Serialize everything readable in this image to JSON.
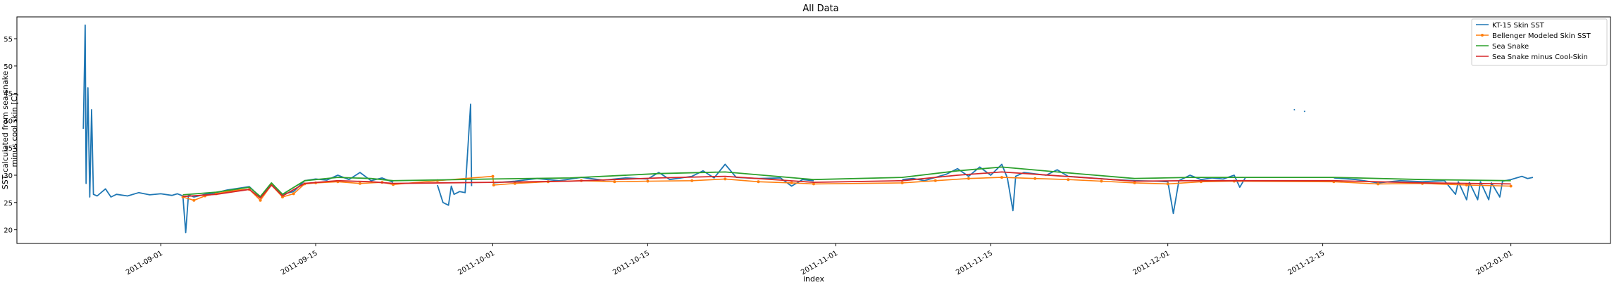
{
  "chart_data": {
    "type": "line",
    "title": "All Data",
    "xlabel": "index",
    "ylabel": [
      "SST calculated from sea snake",
      "minus cool skin [C]"
    ],
    "x_type": "date",
    "xlim": [
      "2011-08-19",
      "2012-01-10"
    ],
    "ylim": [
      17.5,
      59
    ],
    "xticks": [
      "2011-09-01",
      "2011-09-15",
      "2011-10-01",
      "2011-10-15",
      "2011-11-01",
      "2011-11-15",
      "2011-12-01",
      "2011-12-15",
      "2012-01-01"
    ],
    "yticks": [
      20,
      25,
      30,
      35,
      40,
      45,
      50,
      55
    ],
    "grid": false,
    "legend_position": "top-right",
    "colors": {
      "kt15": "#1f77b4",
      "bellenger": "#ff7f0e",
      "seasnake": "#2ca02c",
      "seasnake_cool": "#d62728"
    },
    "series": [
      {
        "name": "KT-15 Skin SST",
        "color": "#1f77b4",
        "marker": false,
        "segments": [
          [
            [
              "2011-08-25 00:00",
              38.5
            ],
            [
              "2011-08-25 04:00",
              57.5
            ],
            [
              "2011-08-25 06:00",
              28.5
            ],
            [
              "2011-08-25 10:00",
              46.0
            ],
            [
              "2011-08-25 14:00",
              26.0
            ],
            [
              "2011-08-25 18:00",
              42.0
            ],
            [
              "2011-08-25 22:00",
              26.5
            ],
            [
              "2011-08-26 06:00",
              26.2
            ],
            [
              "2011-08-27 00:00",
              27.5
            ],
            [
              "2011-08-27 12:00",
              26.0
            ],
            [
              "2011-08-28 00:00",
              26.5
            ],
            [
              "2011-08-29 00:00",
              26.2
            ],
            [
              "2011-08-30 00:00",
              26.8
            ],
            [
              "2011-08-31 00:00",
              26.4
            ],
            [
              "2011-09-01 00:00",
              26.6
            ],
            [
              "2011-09-02 00:00",
              26.3
            ],
            [
              "2011-09-02 12:00",
              26.6
            ],
            [
              "2011-09-03 00:00",
              26.2
            ],
            [
              "2011-09-03 06:00",
              19.5
            ],
            [
              "2011-09-03 12:00",
              26.4
            ],
            [
              "2011-09-04 00:00",
              26.0
            ],
            [
              "2011-09-05 00:00",
              26.5
            ],
            [
              "2011-09-06 00:00",
              26.8
            ],
            [
              "2011-09-07 00:00",
              27.3
            ],
            [
              "2011-09-08 00:00",
              27.6
            ],
            [
              "2011-09-09 00:00",
              27.9
            ],
            [
              "2011-09-10 00:00",
              26.0
            ],
            [
              "2011-09-11 00:00",
              28.5
            ],
            [
              "2011-09-12 00:00",
              26.5
            ],
            [
              "2011-09-13 00:00",
              27.0
            ],
            [
              "2011-09-14 00:00",
              29.0
            ],
            [
              "2011-09-15 00:00",
              29.3
            ],
            [
              "2011-09-16 00:00",
              29.1
            ],
            [
              "2011-09-17 00:00",
              30.0
            ],
            [
              "2011-09-18 00:00",
              29.2
            ],
            [
              "2011-09-19 00:00",
              30.5
            ],
            [
              "2011-09-20 00:00",
              29.0
            ],
            [
              "2011-09-21 00:00",
              29.5
            ],
            [
              "2011-09-22 00:00",
              28.7
            ]
          ],
          [
            [
              "2011-09-26 00:00",
              28.2
            ],
            [
              "2011-09-26 12:00",
              25.0
            ],
            [
              "2011-09-27 00:00",
              24.5
            ],
            [
              "2011-09-27 06:00",
              28.0
            ],
            [
              "2011-09-27 12:00",
              26.5
            ],
            [
              "2011-09-28 00:00",
              27.0
            ],
            [
              "2011-09-28 12:00",
              26.8
            ],
            [
              "2011-09-29 00:00",
              43.0
            ],
            [
              "2011-09-29 02:00",
              28.0
            ]
          ],
          [
            [
              "2011-10-01 00:00",
              28.6
            ],
            [
              "2011-10-03 00:00",
              28.9
            ],
            [
              "2011-10-05 00:00",
              29.4
            ],
            [
              "2011-10-07 00:00",
              29.0
            ],
            [
              "2011-10-09 00:00",
              29.6
            ],
            [
              "2011-10-11 00:00",
              29.1
            ],
            [
              "2011-10-13 00:00",
              29.5
            ],
            [
              "2011-10-15 00:00",
              29.3
            ],
            [
              "2011-10-16 00:00",
              30.5
            ],
            [
              "2011-10-17 00:00",
              29.2
            ],
            [
              "2011-10-19 00:00",
              29.8
            ],
            [
              "2011-10-20 00:00",
              30.8
            ],
            [
              "2011-10-21 00:00",
              29.5
            ],
            [
              "2011-10-22 00:00",
              32.0
            ],
            [
              "2011-10-23 00:00",
              29.6
            ],
            [
              "2011-10-25 00:00",
              29.4
            ],
            [
              "2011-10-27 00:00",
              29.5
            ],
            [
              "2011-10-28 00:00",
              28.0
            ],
            [
              "2011-10-29 00:00",
              29.2
            ],
            [
              "2011-10-30 00:00",
              29.0
            ]
          ],
          [
            [
              "2011-11-07 00:00",
              29.2
            ],
            [
              "2011-11-08 00:00",
              29.4
            ],
            [
              "2011-11-09 00:00",
              29.0
            ],
            [
              "2011-11-10 00:00",
              29.6
            ],
            [
              "2011-11-11 00:00",
              30.2
            ],
            [
              "2011-11-12 00:00",
              31.2
            ],
            [
              "2011-11-13 00:00",
              29.8
            ],
            [
              "2011-11-14 00:00",
              31.5
            ],
            [
              "2011-11-15 00:00",
              30.0
            ],
            [
              "2011-11-16 00:00",
              32.0
            ],
            [
              "2011-11-16 12:00",
              29.5
            ],
            [
              "2011-11-17 00:00",
              23.5
            ],
            [
              "2011-11-17 06:00",
              29.8
            ],
            [
              "2011-11-18 00:00",
              30.5
            ],
            [
              "2011-11-20 00:00",
              30.0
            ],
            [
              "2011-11-21 00:00",
              31.0
            ],
            [
              "2011-11-22 00:00",
              29.8
            ],
            [
              "2011-11-24 00:00",
              29.5
            ],
            [
              "2011-11-26 00:00",
              29.2
            ],
            [
              "2011-11-28 00:00",
              29.0
            ],
            [
              "2011-11-30 00:00",
              28.9
            ],
            [
              "2011-12-01 00:00",
              28.8
            ],
            [
              "2011-12-01 12:00",
              23.0
            ],
            [
              "2011-12-02 00:00",
              29.0
            ],
            [
              "2011-12-03 00:00",
              30.0
            ],
            [
              "2011-12-04 00:00",
              29.2
            ],
            [
              "2011-12-05 00:00",
              29.5
            ],
            [
              "2011-12-06 00:00",
              29.3
            ],
            [
              "2011-12-07 00:00",
              30.0
            ],
            [
              "2011-12-07 12:00",
              27.8
            ],
            [
              "2011-12-08 00:00",
              29.5
            ]
          ],
          [
            [
              "2011-12-16 00:00",
              29.5
            ],
            [
              "2011-12-18 00:00",
              29.2
            ],
            [
              "2011-12-20 00:00",
              28.6
            ],
            [
              "2011-12-22 00:00",
              29.0
            ],
            [
              "2011-12-24 00:00",
              28.8
            ],
            [
              "2011-12-26 00:00",
              29.0
            ],
            [
              "2011-12-27 00:00",
              26.5
            ],
            [
              "2011-12-27 06:00",
              28.8
            ],
            [
              "2011-12-28 00:00",
              25.5
            ],
            [
              "2011-12-28 06:00",
              28.7
            ],
            [
              "2011-12-29 00:00",
              25.5
            ],
            [
              "2011-12-29 06:00",
              28.8
            ],
            [
              "2011-12-30 00:00",
              25.5
            ],
            [
              "2011-12-30 06:00",
              28.6
            ],
            [
              "2011-12-31 00:00",
              26.0
            ],
            [
              "2011-12-31 06:00",
              28.9
            ],
            [
              "2012-01-01 00:00",
              29.2
            ],
            [
              "2012-01-02 00:00",
              29.8
            ],
            [
              "2012-01-02 12:00",
              29.4
            ],
            [
              "2012-01-03 00:00",
              29.6
            ]
          ],
          [
            [
              "2011-12-12 10:00",
              42.1
            ],
            [
              "2011-12-12 11:00",
              41.9
            ]
          ],
          [
            [
              "2011-12-13 08:00",
              41.8
            ],
            [
              "2011-12-13 09:00",
              41.6
            ]
          ]
        ]
      },
      {
        "name": "Bellenger Modeled Skin SST",
        "color": "#ff7f0e",
        "marker": true,
        "segments": [
          [
            [
              "2011-09-03 00:00",
              26.0
            ],
            [
              "2011-09-04 00:00",
              25.4
            ],
            [
              "2011-09-05 00:00",
              26.2
            ],
            [
              "2011-09-06 00:00",
              26.6
            ],
            [
              "2011-09-07 00:00",
              27.0
            ],
            [
              "2011-09-08 00:00",
              27.3
            ],
            [
              "2011-09-09 00:00",
              27.4
            ],
            [
              "2011-09-10 00:00",
              25.4
            ],
            [
              "2011-09-11 00:00",
              28.2
            ],
            [
              "2011-09-12 00:00",
              26.0
            ],
            [
              "2011-09-13 00:00",
              26.6
            ],
            [
              "2011-09-14 00:00",
              28.4
            ],
            [
              "2011-09-15 00:00",
              28.6
            ],
            [
              "2011-09-17 00:00",
              28.8
            ],
            [
              "2011-09-19 00:00",
              28.5
            ],
            [
              "2011-09-21 00:00",
              28.7
            ],
            [
              "2011-09-22 00:00",
              28.3
            ],
            [
              "2011-09-26 00:00",
              29.0
            ],
            [
              "2011-10-01 00:00",
              29.8
            ],
            [
              "2011-10-01 02:00",
              28.2
            ],
            [
              "2011-10-03 00:00",
              28.5
            ],
            [
              "2011-10-06 00:00",
              28.8
            ],
            [
              "2011-10-09 00:00",
              29.0
            ],
            [
              "2011-10-12 00:00",
              28.8
            ],
            [
              "2011-10-15 00:00",
              28.9
            ],
            [
              "2011-10-19 00:00",
              29.0
            ],
            [
              "2011-10-22 00:00",
              29.3
            ],
            [
              "2011-10-25 00:00",
              28.8
            ],
            [
              "2011-10-28 00:00",
              28.6
            ],
            [
              "2011-10-30 00:00",
              28.4
            ],
            [
              "2011-11-07 00:00",
              28.6
            ],
            [
              "2011-11-10 00:00",
              29.0
            ],
            [
              "2011-11-13 00:00",
              29.4
            ],
            [
              "2011-11-16 00:00",
              29.6
            ],
            [
              "2011-11-19 00:00",
              29.4
            ],
            [
              "2011-11-22 00:00",
              29.2
            ],
            [
              "2011-11-25 00:00",
              28.9
            ],
            [
              "2011-11-28 00:00",
              28.6
            ],
            [
              "2011-12-01 00:00",
              28.4
            ],
            [
              "2011-12-04 00:00",
              28.8
            ],
            [
              "2011-12-07 00:00",
              28.9
            ],
            [
              "2011-12-16 00:00",
              28.8
            ],
            [
              "2011-12-20 00:00",
              28.4
            ],
            [
              "2011-12-24 00:00",
              28.5
            ],
            [
              "2011-12-28 00:00",
              28.2
            ],
            [
              "2012-01-01 00:00",
              28.0
            ]
          ]
        ]
      },
      {
        "name": "Sea Snake",
        "color": "#2ca02c",
        "marker": false,
        "segments": [
          [
            [
              "2011-09-03 00:00",
              26.4
            ],
            [
              "2011-09-06 00:00",
              26.9
            ],
            [
              "2011-09-09 00:00",
              27.8
            ],
            [
              "2011-09-10 00:00",
              26.1
            ],
            [
              "2011-09-11 00:00",
              28.6
            ],
            [
              "2011-09-12 00:00",
              26.5
            ],
            [
              "2011-09-14 00:00",
              29.0
            ],
            [
              "2011-09-17 00:00",
              29.6
            ],
            [
              "2011-09-20 00:00",
              29.4
            ],
            [
              "2011-09-22 00:00",
              29.0
            ],
            [
              "2011-10-01 00:00",
              29.3
            ],
            [
              "2011-10-08 00:00",
              29.5
            ],
            [
              "2011-10-16 00:00",
              30.3
            ],
            [
              "2011-10-22 00:00",
              30.6
            ],
            [
              "2011-10-30 00:00",
              29.2
            ],
            [
              "2011-11-07 00:00",
              29.6
            ],
            [
              "2011-11-12 00:00",
              30.8
            ],
            [
              "2011-11-16 00:00",
              31.5
            ],
            [
              "2011-11-21 00:00",
              30.6
            ],
            [
              "2011-11-28 00:00",
              29.4
            ],
            [
              "2011-12-03 00:00",
              29.6
            ],
            [
              "2011-12-08 00:00",
              29.6
            ],
            [
              "2011-12-16 00:00",
              29.6
            ],
            [
              "2011-12-24 00:00",
              29.2
            ],
            [
              "2012-01-01 00:00",
              29.0
            ]
          ]
        ]
      },
      {
        "name": "Sea Snake minus Cool-Skin",
        "color": "#d62728",
        "marker": false,
        "segments": [
          [
            [
              "2011-09-03 00:00",
              26.1
            ],
            [
              "2011-09-06 00:00",
              26.5
            ],
            [
              "2011-09-09 00:00",
              27.4
            ],
            [
              "2011-09-10 00:00",
              25.8
            ],
            [
              "2011-09-11 00:00",
              28.2
            ],
            [
              "2011-09-12 00:00",
              26.2
            ],
            [
              "2011-09-14 00:00",
              28.5
            ],
            [
              "2011-09-17 00:00",
              29.0
            ],
            [
              "2011-09-20 00:00",
              28.8
            ],
            [
              "2011-09-22 00:00",
              28.5
            ],
            [
              "2011-10-01 00:00",
              28.7
            ],
            [
              "2011-10-08 00:00",
              28.9
            ],
            [
              "2011-10-16 00:00",
              29.5
            ],
            [
              "2011-10-22 00:00",
              29.8
            ],
            [
              "2011-10-30 00:00",
              28.7
            ],
            [
              "2011-11-07 00:00",
              29.0
            ],
            [
              "2011-11-12 00:00",
              30.0
            ],
            [
              "2011-11-16 00:00",
              30.6
            ],
            [
              "2011-11-21 00:00",
              29.9
            ],
            [
              "2011-11-28 00:00",
              28.9
            ],
            [
              "2011-12-03 00:00",
              29.0
            ],
            [
              "2011-12-08 00:00",
              29.0
            ],
            [
              "2011-12-16 00:00",
              29.0
            ],
            [
              "2011-12-24 00:00",
              28.6
            ],
            [
              "2012-01-01 00:00",
              28.4
            ]
          ]
        ]
      }
    ]
  }
}
